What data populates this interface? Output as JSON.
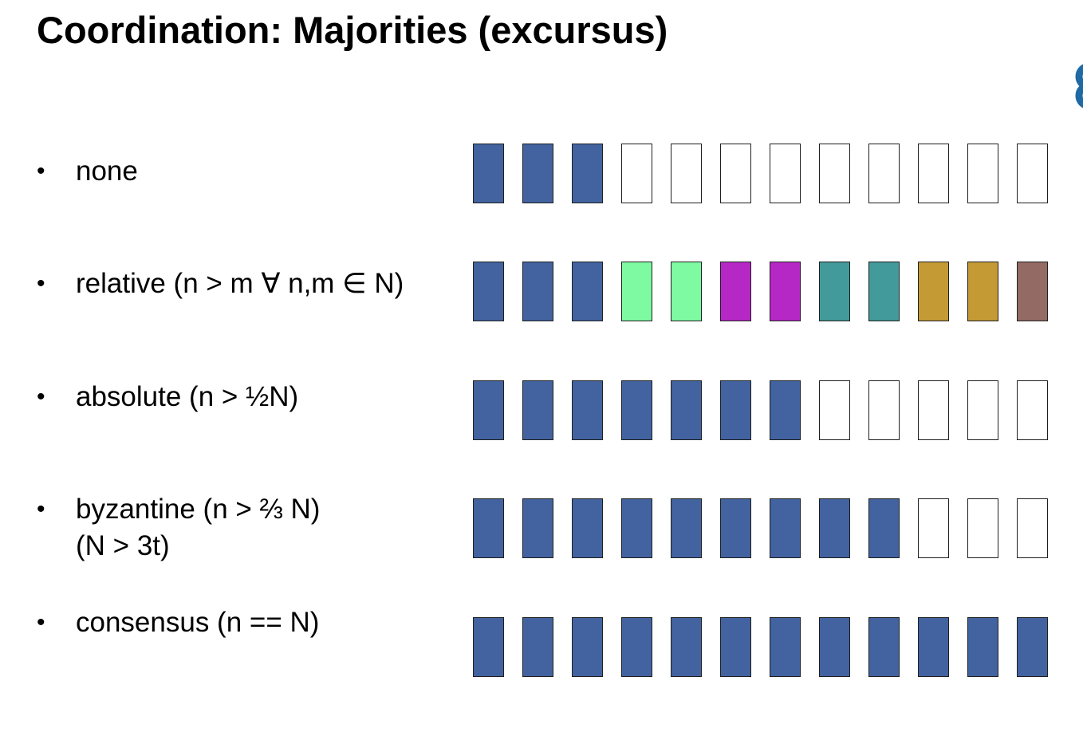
{
  "title": "Coordination: Majorities (excursus)",
  "colors": {
    "filled": "#4263a0",
    "empty": "#ffffff",
    "border": "#1f1f1f",
    "logo": "#1f6aa5"
  },
  "rows": [
    {
      "lines": [
        "none"
      ],
      "boxes": [
        "filled",
        "filled",
        "filled",
        "empty",
        "empty",
        "empty",
        "empty",
        "empty",
        "empty",
        "empty",
        "empty",
        "empty"
      ]
    },
    {
      "lines": [
        "relative (n > m ∀ n,m ∈ N)"
      ],
      "boxes": [
        "filled",
        "filled",
        "filled",
        "#7dfaa2",
        "#7dfaa2",
        "#b628c5",
        "#b628c5",
        "#439a9a",
        "#439a9a",
        "#c49a35",
        "#c49a35",
        "#936b64"
      ]
    },
    {
      "lines": [
        "absolute (n > ½N)"
      ],
      "boxes": [
        "filled",
        "filled",
        "filled",
        "filled",
        "filled",
        "filled",
        "filled",
        "empty",
        "empty",
        "empty",
        "empty",
        "empty"
      ]
    },
    {
      "lines": [
        "byzantine (n > ⅔ N)",
        "(N > 3t)"
      ],
      "boxes": [
        "filled",
        "filled",
        "filled",
        "filled",
        "filled",
        "filled",
        "filled",
        "filled",
        "filled",
        "empty",
        "empty",
        "empty"
      ]
    },
    {
      "lines": [
        "consensus (n == N)"
      ],
      "boxes": [
        "filled",
        "filled",
        "filled",
        "filled",
        "filled",
        "filled",
        "filled",
        "filled",
        "filled",
        "filled",
        "filled",
        "filled"
      ]
    }
  ]
}
